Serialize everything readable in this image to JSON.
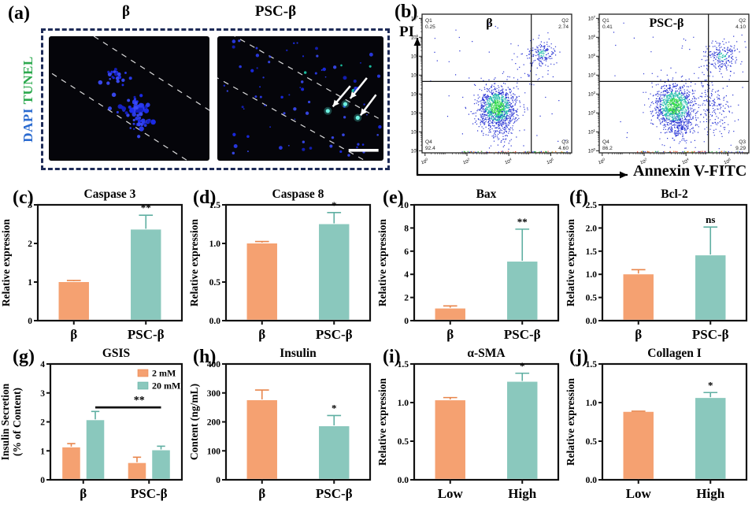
{
  "colors": {
    "orange": "#F5A171",
    "orange_err": "#E8854B",
    "teal": "#8AC8BD",
    "teal_err": "#5FAFA2",
    "frame": "#111111",
    "navy_dash": "#1E2B58",
    "dapi_blue": "#2B6BD0",
    "tunel_green": "#2CA94E",
    "scatter_blue": "#2A35D4",
    "scatter_green": "#35D94F",
    "scatter_cyan": "#2ABFAE"
  },
  "panel_a": {
    "label": "(a)",
    "col_titles": [
      "β",
      "PSC-β"
    ],
    "stain_labels": {
      "dapi": "DAPI",
      "tunel": "TUNEL"
    },
    "images": [
      {
        "id": "beta-micrograph",
        "features": [
          "nuclei-clusters",
          "dashed-guide-lines"
        ]
      },
      {
        "id": "psc-beta-micrograph",
        "features": [
          "scattered-nuclei",
          "tunel-positive-spots",
          "white-arrows",
          "scale-bar",
          "dashed-guide-lines"
        ]
      }
    ]
  },
  "panel_b": {
    "label": "(b)",
    "y_axis_label": "PI",
    "x_axis_label": "Annexin V-FITC"
  },
  "chart_data": [
    {
      "type": "scatter",
      "subtype": "flow-cytometry",
      "id": "flow-beta",
      "title": "β",
      "xlabel": "Annexin V-FITC",
      "ylabel": "PI",
      "x_tick_exponents": [
        0,
        2,
        4,
        6
      ],
      "y_tick_exponents": [
        0,
        1,
        2,
        3,
        4,
        5,
        6,
        7
      ],
      "quadrants": {
        "Q1": "0.25",
        "Q2": "2.74",
        "Q3": "4.60",
        "Q4": "92.4"
      },
      "clusters": [
        {
          "kind": "main",
          "cx": 0.5,
          "cy": 0.33,
          "sx": 0.062,
          "sy": 0.075,
          "n": 1050
        },
        {
          "kind": "plain",
          "cx": 0.52,
          "cy": 0.2,
          "sx": 0.05,
          "sy": 0.07,
          "n": 170
        },
        {
          "kind": "ur",
          "cx": 0.8,
          "cy": 0.72,
          "sx": 0.045,
          "sy": 0.045,
          "n": 170
        },
        {
          "kind": "plain",
          "cx": 0.66,
          "cy": 0.55,
          "sx": 0.06,
          "sy": 0.1,
          "n": 35
        },
        {
          "kind": "strip",
          "n": 90
        },
        {
          "kind": "sparse",
          "n": 45
        }
      ]
    },
    {
      "type": "scatter",
      "subtype": "flow-cytometry",
      "id": "flow-psc-beta",
      "title": "PSC-β",
      "xlabel": "Annexin V-FITC",
      "ylabel": "PI",
      "x_tick_exponents": [
        0,
        2,
        4,
        6
      ],
      "y_tick_exponents": [
        0,
        1,
        2,
        3,
        4,
        5,
        6,
        7
      ],
      "quadrants": {
        "Q1": "0.41",
        "Q2": "4.10",
        "Q3": "9.29",
        "Q4": "86.2"
      },
      "clusters": [
        {
          "kind": "main",
          "cx": 0.5,
          "cy": 0.34,
          "sx": 0.068,
          "sy": 0.08,
          "n": 1050
        },
        {
          "kind": "plain",
          "cx": 0.54,
          "cy": 0.2,
          "sx": 0.055,
          "sy": 0.07,
          "n": 190
        },
        {
          "kind": "plain",
          "cx": 0.78,
          "cy": 0.3,
          "sx": 0.05,
          "sy": 0.09,
          "n": 120
        },
        {
          "kind": "ur",
          "cx": 0.82,
          "cy": 0.7,
          "sx": 0.055,
          "sy": 0.05,
          "n": 200
        },
        {
          "kind": "plain",
          "cx": 0.72,
          "cy": 0.52,
          "sx": 0.025,
          "sy": 0.14,
          "n": 80
        },
        {
          "kind": "strip",
          "n": 90
        },
        {
          "kind": "sparse",
          "n": 45
        }
      ]
    },
    {
      "type": "bar",
      "panel": "(c)",
      "id": "caspase3",
      "title": "Caspase 3",
      "ylabel": [
        "Relative expression"
      ],
      "ylim": [
        0,
        3
      ],
      "yticks": [
        {
          "v": 0,
          "label": "0"
        },
        {
          "v": 1,
          "label": "1"
        },
        {
          "v": 2,
          "label": "2"
        },
        {
          "v": 3,
          "label": "3"
        }
      ],
      "categories": [
        "β",
        "PSC-β"
      ],
      "values": [
        1.0,
        2.36
      ],
      "errors": [
        0.04,
        0.37
      ],
      "bar_colors": [
        "orange",
        "teal"
      ],
      "sig": [
        null,
        "**"
      ]
    },
    {
      "type": "bar",
      "panel": "(d)",
      "id": "caspase8",
      "title": "Caspase 8",
      "ylabel": [
        "Relative expression"
      ],
      "ylim": [
        0,
        1.5
      ],
      "yticks": [
        {
          "v": 0,
          "label": "0.0"
        },
        {
          "v": 0.5,
          "label": "0.5"
        },
        {
          "v": 1,
          "label": "1.0"
        },
        {
          "v": 1.5,
          "label": "1.5"
        }
      ],
      "categories": [
        "β",
        "PSC-β"
      ],
      "values": [
        1.0,
        1.25
      ],
      "errors": [
        0.025,
        0.15
      ],
      "bar_colors": [
        "orange",
        "teal"
      ],
      "sig": [
        null,
        "*"
      ]
    },
    {
      "type": "bar",
      "panel": "(e)",
      "id": "bax",
      "title": "Bax",
      "ylabel": [
        "Relative expression"
      ],
      "ylim": [
        0,
        10
      ],
      "yticks": [
        {
          "v": 0,
          "label": "0"
        },
        {
          "v": 2,
          "label": "2"
        },
        {
          "v": 4,
          "label": "4"
        },
        {
          "v": 6,
          "label": "6"
        },
        {
          "v": 8,
          "label": "8"
        },
        {
          "v": 10,
          "label": "10"
        }
      ],
      "categories": [
        "β",
        "PSC-β"
      ],
      "values": [
        1.05,
        5.1
      ],
      "errors": [
        0.22,
        2.8
      ],
      "bar_colors": [
        "orange",
        "teal"
      ],
      "sig": [
        null,
        "**"
      ]
    },
    {
      "type": "bar",
      "panel": "(f)",
      "id": "bcl2",
      "title": "Bcl-2",
      "ylabel": [
        "Relative expression"
      ],
      "ylim": [
        0,
        2.5
      ],
      "yticks": [
        {
          "v": 0,
          "label": "0.0"
        },
        {
          "v": 0.5,
          "label": "0.5"
        },
        {
          "v": 1,
          "label": "1.0"
        },
        {
          "v": 1.5,
          "label": "1.5"
        },
        {
          "v": 2,
          "label": "2.0"
        },
        {
          "v": 2.5,
          "label": "2.5"
        }
      ],
      "categories": [
        "β",
        "PSC-β"
      ],
      "values": [
        1.0,
        1.41
      ],
      "errors": [
        0.1,
        0.61
      ],
      "bar_colors": [
        "orange",
        "teal"
      ],
      "sig": [
        null,
        "ns"
      ]
    },
    {
      "type": "bar",
      "panel": "(g)",
      "id": "gsis",
      "title": "GSIS",
      "ylabel": [
        "Insulin Secretion",
        "(% of Content)"
      ],
      "ylim": [
        0,
        4
      ],
      "yticks": [
        {
          "v": 0,
          "label": "0"
        },
        {
          "v": 1,
          "label": "1"
        },
        {
          "v": 2,
          "label": "2"
        },
        {
          "v": 3,
          "label": "3"
        },
        {
          "v": 4,
          "label": "4"
        }
      ],
      "categories": [
        "β",
        "PSC-β"
      ],
      "series": [
        {
          "name": "2 mM",
          "color": "orange",
          "values": [
            1.12,
            0.58
          ],
          "errors": [
            0.13,
            0.2
          ]
        },
        {
          "name": "20 mM",
          "color": "teal",
          "values": [
            2.06,
            1.02
          ],
          "errors": [
            0.3,
            0.14
          ]
        }
      ],
      "legend": [
        "2 mM",
        "20 mM"
      ],
      "sig_line": {
        "y": 2.5,
        "label": "**",
        "x1_cat": 0,
        "x1_series": 1,
        "x2_cat": 1,
        "x2_series": 1
      }
    },
    {
      "type": "bar",
      "panel": "(h)",
      "id": "insulin",
      "title": "Insulin",
      "ylabel": [
        "Content (ng/mL)"
      ],
      "ylim": [
        0,
        400
      ],
      "yticks": [
        {
          "v": 0,
          "label": "0"
        },
        {
          "v": 100,
          "label": "100"
        },
        {
          "v": 200,
          "label": "200"
        },
        {
          "v": 300,
          "label": "300"
        },
        {
          "v": 400,
          "label": "400"
        }
      ],
      "categories": [
        "β",
        "PSC-β"
      ],
      "values": [
        275,
        185
      ],
      "errors": [
        35,
        37
      ],
      "bar_colors": [
        "orange",
        "teal"
      ],
      "sig": [
        null,
        "*"
      ]
    },
    {
      "type": "bar",
      "panel": "(i)",
      "id": "asma",
      "title": "α-SMA",
      "ylabel": [
        "Relative expression"
      ],
      "ylim": [
        0,
        1.5
      ],
      "yticks": [
        {
          "v": 0,
          "label": "0.0"
        },
        {
          "v": 0.5,
          "label": "0.5"
        },
        {
          "v": 1,
          "label": "1.0"
        },
        {
          "v": 1.5,
          "label": "1.5"
        }
      ],
      "categories": [
        "Low",
        "High"
      ],
      "values": [
        1.03,
        1.27
      ],
      "errors": [
        0.035,
        0.11
      ],
      "bar_colors": [
        "orange",
        "teal"
      ],
      "sig": [
        null,
        "*"
      ]
    },
    {
      "type": "bar",
      "panel": "(j)",
      "id": "collagen1",
      "title": "Collagen I",
      "ylabel": [
        "Relative expression"
      ],
      "ylim": [
        0,
        1.5
      ],
      "yticks": [
        {
          "v": 0,
          "label": "0.0"
        },
        {
          "v": 0.5,
          "label": "0.5"
        },
        {
          "v": 1,
          "label": "1.0"
        },
        {
          "v": 1.5,
          "label": "1.5"
        }
      ],
      "categories": [
        "Low",
        "High"
      ],
      "values": [
        0.88,
        1.06
      ],
      "errors": [
        0.008,
        0.07
      ],
      "bar_colors": [
        "orange",
        "teal"
      ],
      "sig": [
        null,
        "*"
      ]
    }
  ]
}
